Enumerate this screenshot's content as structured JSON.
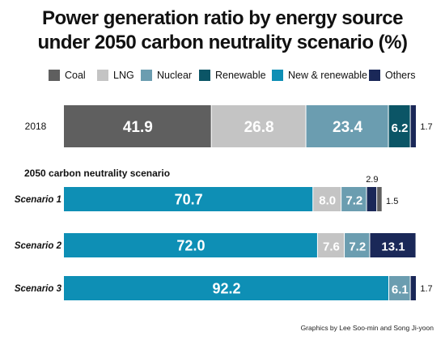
{
  "title_line1": "Power generation ratio by energy source",
  "title_line2": "under 2050 carbon neutrality scenario (%)",
  "credit": "Graphics by Lee Soo-min and Song Ji-yoon",
  "chart_data": {
    "type": "bar",
    "orientation": "horizontal",
    "stacked": true,
    "legend_position": "top",
    "xlim": [
      0,
      100
    ],
    "grid": false,
    "legend": [
      {
        "name": "Coal",
        "color": "#5f5f5f"
      },
      {
        "name": "LNG",
        "color": "#c4c4c4"
      },
      {
        "name": "Nuclear",
        "color": "#6b9db0"
      },
      {
        "name": "Renewable",
        "color": "#0b5566"
      },
      {
        "name": "New & renewable",
        "color": "#0e8fb5"
      },
      {
        "name": "Others",
        "color": "#1a2858"
      }
    ],
    "group_label": "2050 carbon neutrality scenario",
    "rows": [
      {
        "label": "2018",
        "segments": [
          {
            "source": "Coal",
            "value": 41.9,
            "label": "41.9"
          },
          {
            "source": "LNG",
            "value": 26.8,
            "label": "26.8"
          },
          {
            "source": "Nuclear",
            "value": 23.4,
            "label": "23.4"
          },
          {
            "source": "Renewable",
            "value": 6.2,
            "label": "6.2"
          },
          {
            "source": "Others",
            "value": 1.7,
            "label": "1.7"
          }
        ]
      },
      {
        "label": "Scenario 1",
        "segments": [
          {
            "source": "New & renewable",
            "value": 70.7,
            "label": "70.7"
          },
          {
            "source": "LNG",
            "value": 8.0,
            "label": "8.0"
          },
          {
            "source": "Nuclear",
            "value": 7.2,
            "label": "7.2"
          },
          {
            "source": "Others",
            "value": 2.9,
            "label": "2.9"
          },
          {
            "source": "Coal",
            "value": 1.5,
            "label": "1.5"
          }
        ]
      },
      {
        "label": "Scenario 2",
        "segments": [
          {
            "source": "New & renewable",
            "value": 72.0,
            "label": "72.0"
          },
          {
            "source": "LNG",
            "value": 7.6,
            "label": "7.6"
          },
          {
            "source": "Nuclear",
            "value": 7.2,
            "label": "7.2"
          },
          {
            "source": "Others",
            "value": 13.1,
            "label": "13.1"
          }
        ]
      },
      {
        "label": "Scenario 3",
        "segments": [
          {
            "source": "New & renewable",
            "value": 92.2,
            "label": "92.2"
          },
          {
            "source": "Nuclear",
            "value": 6.1,
            "label": "6.1"
          },
          {
            "source": "Others",
            "value": 1.7,
            "label": "1.7"
          }
        ]
      }
    ]
  }
}
